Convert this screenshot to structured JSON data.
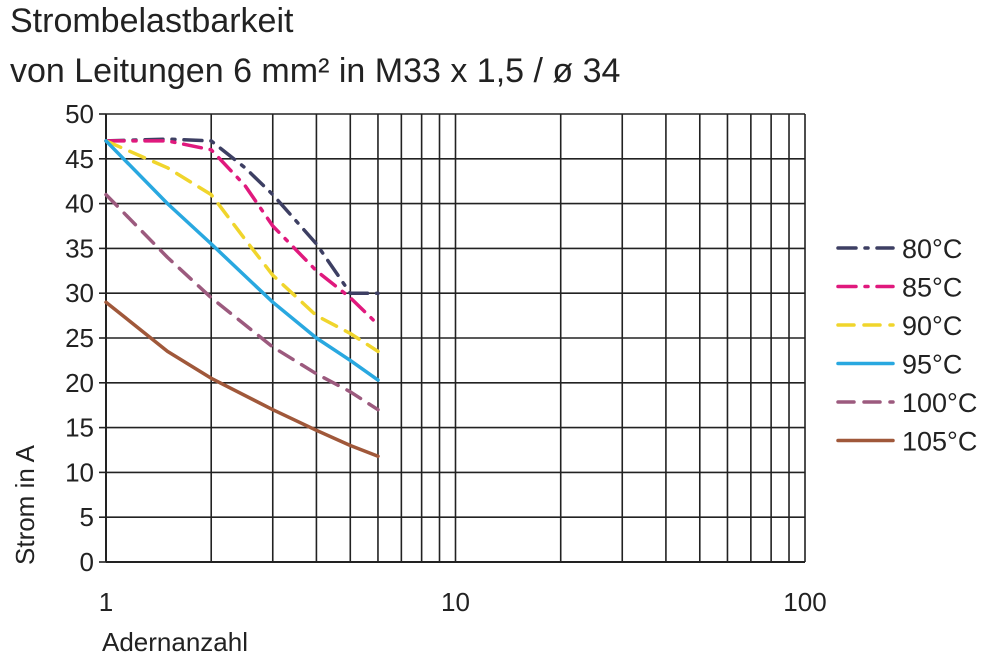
{
  "title_line1": "Strombelastbarkeit",
  "title_line2": "von Leitungen 6 mm² in M33 x 1,5 / ø 34",
  "chart_data": {
    "type": "line",
    "x_scale": "log",
    "xlim": [
      1,
      100
    ],
    "ylim": [
      0,
      50
    ],
    "grid": true,
    "legend_placement": "right",
    "xlabel": "Adernanzahl",
    "ylabel": "Strom in A",
    "xticks": [
      "1",
      "10",
      "100"
    ],
    "yticks": [
      "0",
      "5",
      "10",
      "15",
      "20",
      "25",
      "30",
      "35",
      "40",
      "45",
      "50"
    ],
    "series": [
      {
        "name": "80°C",
        "color": "#3d3f63",
        "dash": "dash-dot",
        "points": [
          [
            1,
            47
          ],
          [
            1.5,
            47.2
          ],
          [
            2,
            47
          ],
          [
            2.5,
            44
          ],
          [
            3,
            41
          ],
          [
            4,
            35.5
          ],
          [
            5,
            30
          ],
          [
            6,
            30
          ]
        ]
      },
      {
        "name": "85°C",
        "color": "#e0197d",
        "dash": "dash-dot",
        "points": [
          [
            1,
            47
          ],
          [
            1.5,
            47
          ],
          [
            2,
            46
          ],
          [
            2.5,
            42
          ],
          [
            3,
            37.5
          ],
          [
            4,
            32.5
          ],
          [
            5,
            29.5
          ],
          [
            6,
            26.5
          ]
        ]
      },
      {
        "name": "90°C",
        "color": "#f0d52c",
        "dash": "dash",
        "points": [
          [
            1,
            47
          ],
          [
            1.5,
            44
          ],
          [
            2,
            41
          ],
          [
            2.5,
            36
          ],
          [
            3,
            32
          ],
          [
            4,
            27.5
          ],
          [
            5,
            25.5
          ],
          [
            6,
            23.5
          ]
        ]
      },
      {
        "name": "95°C",
        "color": "#29a8e0",
        "dash": "solid",
        "points": [
          [
            1,
            47
          ],
          [
            1.5,
            40
          ],
          [
            2,
            35.5
          ],
          [
            3,
            29
          ],
          [
            4,
            25
          ],
          [
            5,
            22.5
          ],
          [
            6,
            20.3
          ]
        ]
      },
      {
        "name": "100°C",
        "color": "#9c5a7e",
        "dash": "dash",
        "points": [
          [
            1,
            41
          ],
          [
            1.5,
            34
          ],
          [
            2,
            29.5
          ],
          [
            3,
            24
          ],
          [
            4,
            21
          ],
          [
            5,
            19
          ],
          [
            6,
            17
          ]
        ]
      },
      {
        "name": "105°C",
        "color": "#a0583a",
        "dash": "solid",
        "points": [
          [
            1,
            29
          ],
          [
            1.5,
            23.5
          ],
          [
            2,
            20.5
          ],
          [
            3,
            17
          ],
          [
            4,
            14.7
          ],
          [
            5,
            13
          ],
          [
            6,
            11.8
          ]
        ]
      }
    ]
  }
}
